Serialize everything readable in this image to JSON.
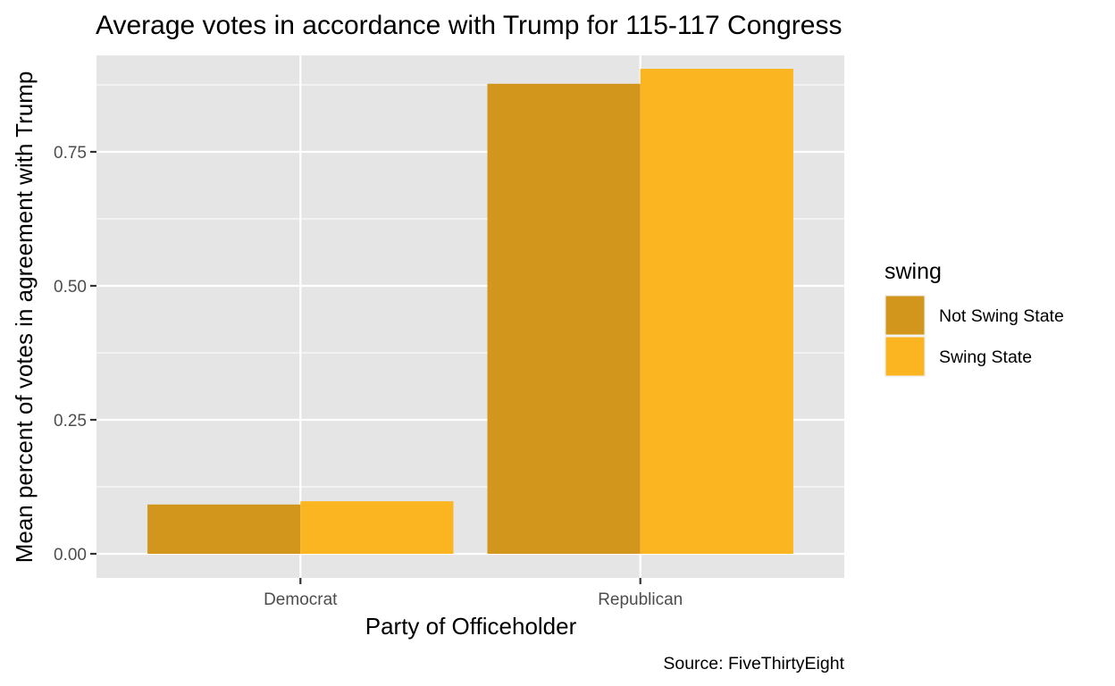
{
  "chart_data": {
    "type": "bar",
    "title": "Average votes in accordance with Trump for 115-117 Congress",
    "xlabel": "Party of Officeholder",
    "ylabel": "Mean percent of votes in agreement with Trump",
    "caption": "Source: FiveThirtyEight",
    "categories": [
      "Democrat",
      "Republican"
    ],
    "legend": {
      "title": "swing",
      "position": "right"
    },
    "series": [
      {
        "name": "Not Swing State",
        "color": "#D2961C",
        "values": [
          0.092,
          0.877
        ]
      },
      {
        "name": "Swing State",
        "color": "#FBB520",
        "values": [
          0.098,
          0.905
        ]
      }
    ],
    "ylim": [
      -0.045,
      0.93
    ],
    "yticks": [
      0.0,
      0.25,
      0.5,
      0.75
    ],
    "ytick_labels": [
      "0.00",
      "0.25",
      "0.50",
      "0.75"
    ],
    "grid": true,
    "panel_background": "#E5E5E5",
    "grid_color": "#FFFFFF"
  }
}
